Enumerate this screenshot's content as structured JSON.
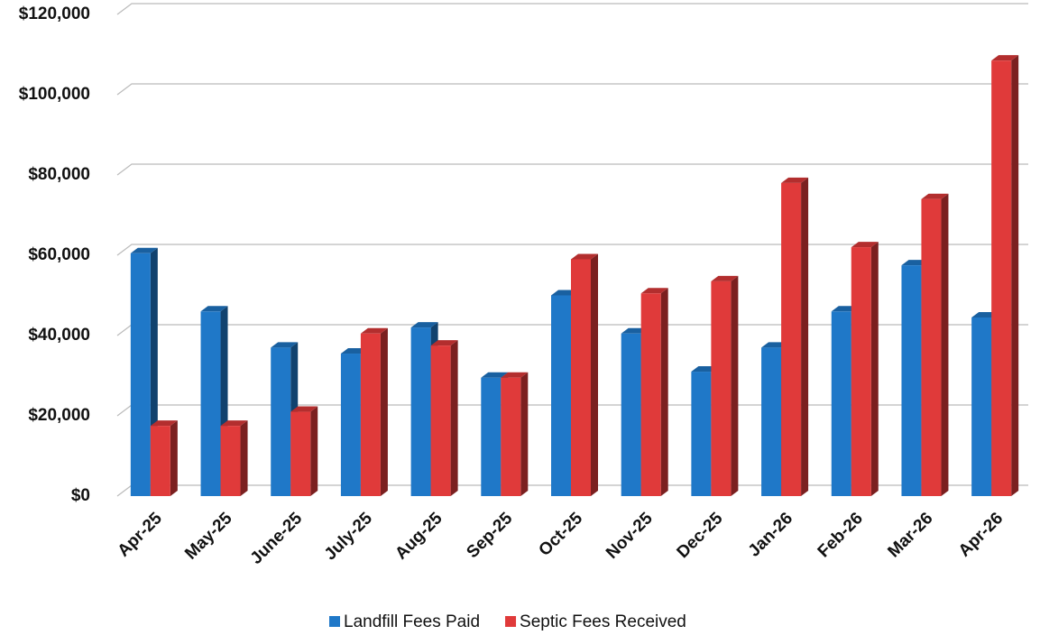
{
  "chart_data": {
    "type": "bar",
    "categories": [
      "Apr-25",
      "May-25",
      "June-25",
      "July-25",
      "Aug-25",
      "Sep-25",
      "Oct-25",
      "Nov-25",
      "Dec-25",
      "Jan-26",
      "Feb-26",
      "Mar-26",
      "Apr-26"
    ],
    "series": [
      {
        "name": "Landfill Fees Paid",
        "color": "#1f78c8",
        "values": [
          60500,
          46000,
          37000,
          35500,
          42000,
          29500,
          50000,
          40500,
          31000,
          37000,
          46000,
          57500,
          44500
        ]
      },
      {
        "name": "Septic Fees  Received",
        "color": "#e03a3a",
        "values": [
          17500,
          17500,
          21000,
          40500,
          37500,
          29500,
          59000,
          50500,
          53500,
          78000,
          62000,
          74000,
          108500
        ]
      }
    ],
    "ylim": [
      0,
      120000
    ],
    "yticks": [
      {
        "value": 0,
        "label": "$0"
      },
      {
        "value": 20000,
        "label": "$20,000"
      },
      {
        "value": 40000,
        "label": "$40,000"
      },
      {
        "value": 60000,
        "label": "$60,000"
      },
      {
        "value": 80000,
        "label": "$80,000"
      },
      {
        "value": 100000,
        "label": "$100,000"
      },
      {
        "value": 120000,
        "label": "$120,000"
      }
    ],
    "grid": true,
    "legend": "bottom"
  }
}
